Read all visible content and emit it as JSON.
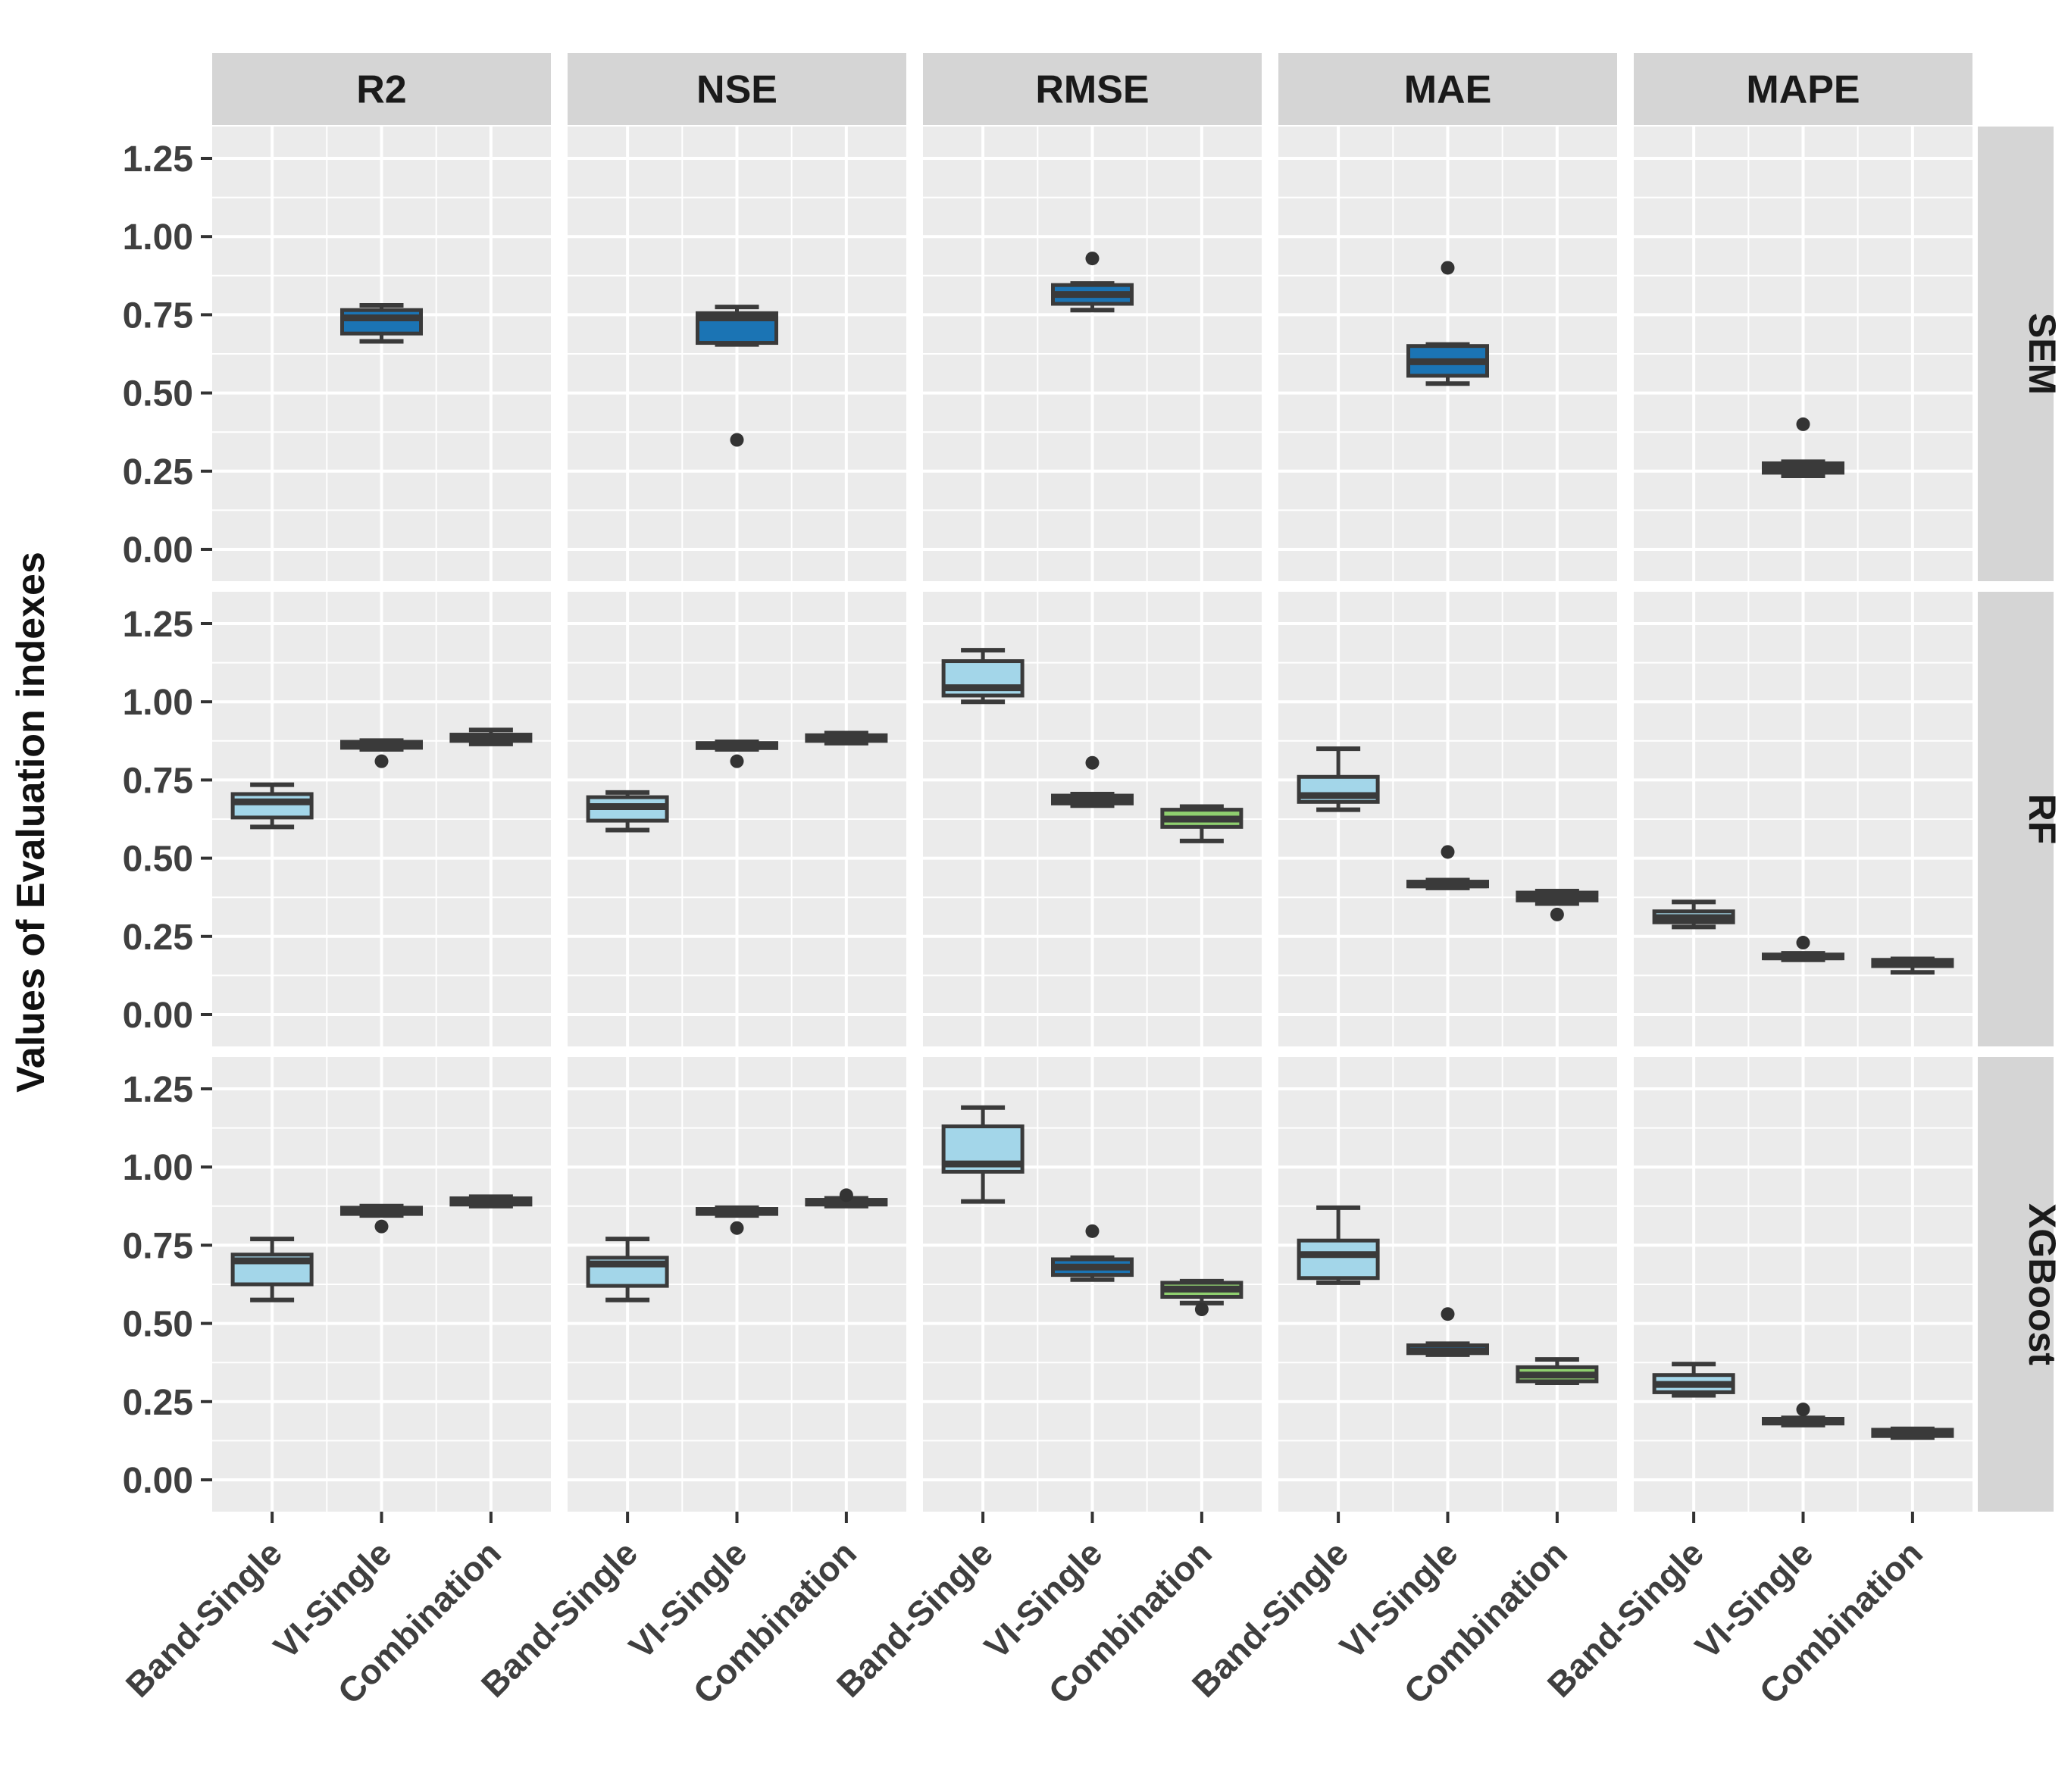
{
  "figure": {
    "background": "#ffffff",
    "panel_background": "#ebebeb",
    "strip_background": "#d5d5d5",
    "grid_color": "#ffffff",
    "box_stroke_color": "#3a3a3a",
    "outlier_color": "#333333",
    "tick_color": "#333333"
  },
  "chart_data": {
    "type": "boxplot",
    "title": "",
    "ylabel": "Values of Evaluation indexes",
    "xlabel": "",
    "col_facets": [
      "R2",
      "NSE",
      "RMSE",
      "MAE",
      "MAPE"
    ],
    "row_facets": [
      "SEM",
      "RF",
      "XGBoost"
    ],
    "categories": [
      "Band-Single",
      "VI-Single",
      "Combination"
    ],
    "group_colors": {
      "Band-Single": "#a3d6e9",
      "VI-Single": "#1b74b4",
      "Combination": "#8fcf6f"
    },
    "ylim": [
      0,
      1.25
    ],
    "ytick_values": [
      0.0,
      0.25,
      0.5,
      0.75,
      1.0,
      1.25
    ],
    "ytick_labels": [
      "0.00",
      "0.25",
      "0.50",
      "0.75",
      "1.00",
      "1.25"
    ],
    "grid": true,
    "legend": "none",
    "boxes": [
      {
        "row": "SEM",
        "col": "R2",
        "group": "VI-Single",
        "low": 0.665,
        "q1": 0.69,
        "median": 0.74,
        "q3": 0.765,
        "high": 0.78,
        "outliers": []
      },
      {
        "row": "SEM",
        "col": "NSE",
        "group": "VI-Single",
        "low": 0.655,
        "q1": 0.66,
        "median": 0.74,
        "q3": 0.755,
        "high": 0.775,
        "outliers": [
          0.35
        ]
      },
      {
        "row": "SEM",
        "col": "RMSE",
        "group": "VI-Single",
        "low": 0.765,
        "q1": 0.785,
        "median": 0.815,
        "q3": 0.845,
        "high": 0.85,
        "outliers": [
          0.93
        ]
      },
      {
        "row": "SEM",
        "col": "MAE",
        "group": "VI-Single",
        "low": 0.53,
        "q1": 0.555,
        "median": 0.6,
        "q3": 0.65,
        "high": 0.655,
        "outliers": [
          0.9
        ]
      },
      {
        "row": "SEM",
        "col": "MAPE",
        "group": "VI-Single",
        "low": 0.235,
        "q1": 0.245,
        "median": 0.26,
        "q3": 0.275,
        "high": 0.28,
        "outliers": [
          0.4
        ]
      },
      {
        "row": "RF",
        "col": "R2",
        "group": "Band-Single",
        "low": 0.6,
        "q1": 0.63,
        "median": 0.68,
        "q3": 0.705,
        "high": 0.735,
        "outliers": []
      },
      {
        "row": "RF",
        "col": "R2",
        "group": "VI-Single",
        "low": 0.848,
        "q1": 0.853,
        "median": 0.862,
        "q3": 0.872,
        "high": 0.876,
        "outliers": [
          0.81
        ]
      },
      {
        "row": "RF",
        "col": "R2",
        "group": "Combination",
        "low": 0.865,
        "q1": 0.875,
        "median": 0.885,
        "q3": 0.895,
        "high": 0.91,
        "outliers": []
      },
      {
        "row": "RF",
        "col": "NSE",
        "group": "Band-Single",
        "low": 0.59,
        "q1": 0.62,
        "median": 0.665,
        "q3": 0.695,
        "high": 0.71,
        "outliers": []
      },
      {
        "row": "RF",
        "col": "NSE",
        "group": "VI-Single",
        "low": 0.848,
        "q1": 0.852,
        "median": 0.86,
        "q3": 0.868,
        "high": 0.872,
        "outliers": [
          0.81
        ]
      },
      {
        "row": "RF",
        "col": "NSE",
        "group": "Combination",
        "low": 0.868,
        "q1": 0.875,
        "median": 0.885,
        "q3": 0.893,
        "high": 0.9,
        "outliers": []
      },
      {
        "row": "RF",
        "col": "RMSE",
        "group": "Band-Single",
        "low": 1.0,
        "q1": 1.02,
        "median": 1.045,
        "q3": 1.13,
        "high": 1.165,
        "outliers": []
      },
      {
        "row": "RF",
        "col": "RMSE",
        "group": "VI-Single",
        "low": 0.668,
        "q1": 0.675,
        "median": 0.685,
        "q3": 0.7,
        "high": 0.705,
        "outliers": [
          0.805
        ]
      },
      {
        "row": "RF",
        "col": "RMSE",
        "group": "Combination",
        "low": 0.555,
        "q1": 0.6,
        "median": 0.625,
        "q3": 0.655,
        "high": 0.665,
        "outliers": []
      },
      {
        "row": "RF",
        "col": "MAE",
        "group": "Band-Single",
        "low": 0.655,
        "q1": 0.68,
        "median": 0.7,
        "q3": 0.76,
        "high": 0.85,
        "outliers": []
      },
      {
        "row": "RF",
        "col": "MAE",
        "group": "VI-Single",
        "low": 0.405,
        "q1": 0.41,
        "median": 0.415,
        "q3": 0.425,
        "high": 0.43,
        "outliers": [
          0.52
        ]
      },
      {
        "row": "RF",
        "col": "MAE",
        "group": "Combination",
        "low": 0.355,
        "q1": 0.365,
        "median": 0.375,
        "q3": 0.39,
        "high": 0.395,
        "outliers": [
          0.32
        ]
      },
      {
        "row": "RF",
        "col": "MAPE",
        "group": "Band-Single",
        "low": 0.28,
        "q1": 0.295,
        "median": 0.31,
        "q3": 0.33,
        "high": 0.36,
        "outliers": []
      },
      {
        "row": "RF",
        "col": "MAPE",
        "group": "VI-Single",
        "low": 0.175,
        "q1": 0.18,
        "median": 0.185,
        "q3": 0.192,
        "high": 0.196,
        "outliers": [
          0.23
        ]
      },
      {
        "row": "RF",
        "col": "MAPE",
        "group": "Combination",
        "low": 0.135,
        "q1": 0.155,
        "median": 0.165,
        "q3": 0.175,
        "high": 0.178,
        "outliers": []
      },
      {
        "row": "XGBoost",
        "col": "R2",
        "group": "Band-Single",
        "low": 0.575,
        "q1": 0.625,
        "median": 0.7,
        "q3": 0.72,
        "high": 0.77,
        "outliers": []
      },
      {
        "row": "XGBoost",
        "col": "R2",
        "group": "VI-Single",
        "low": 0.845,
        "q1": 0.85,
        "median": 0.86,
        "q3": 0.87,
        "high": 0.875,
        "outliers": [
          0.81
        ]
      },
      {
        "row": "XGBoost",
        "col": "R2",
        "group": "Combination",
        "low": 0.875,
        "q1": 0.88,
        "median": 0.89,
        "q3": 0.9,
        "high": 0.905,
        "outliers": []
      },
      {
        "row": "XGBoost",
        "col": "NSE",
        "group": "Band-Single",
        "low": 0.575,
        "q1": 0.62,
        "median": 0.69,
        "q3": 0.71,
        "high": 0.77,
        "outliers": []
      },
      {
        "row": "XGBoost",
        "col": "NSE",
        "group": "VI-Single",
        "low": 0.845,
        "q1": 0.85,
        "median": 0.858,
        "q3": 0.866,
        "high": 0.87,
        "outliers": [
          0.805
        ]
      },
      {
        "row": "XGBoost",
        "col": "NSE",
        "group": "Combination",
        "low": 0.875,
        "q1": 0.88,
        "median": 0.888,
        "q3": 0.895,
        "high": 0.9,
        "outliers": [
          0.91
        ]
      },
      {
        "row": "XGBoost",
        "col": "RMSE",
        "group": "Band-Single",
        "low": 0.89,
        "q1": 0.985,
        "median": 1.01,
        "q3": 1.13,
        "high": 1.19,
        "outliers": []
      },
      {
        "row": "XGBoost",
        "col": "RMSE",
        "group": "VI-Single",
        "low": 0.64,
        "q1": 0.655,
        "median": 0.68,
        "q3": 0.705,
        "high": 0.71,
        "outliers": [
          0.795
        ]
      },
      {
        "row": "XGBoost",
        "col": "RMSE",
        "group": "Combination",
        "low": 0.565,
        "q1": 0.585,
        "median": 0.61,
        "q3": 0.63,
        "high": 0.635,
        "outliers": [
          0.545
        ]
      },
      {
        "row": "XGBoost",
        "col": "MAE",
        "group": "Band-Single",
        "low": 0.63,
        "q1": 0.645,
        "median": 0.72,
        "q3": 0.765,
        "high": 0.87,
        "outliers": []
      },
      {
        "row": "XGBoost",
        "col": "MAE",
        "group": "VI-Single",
        "low": 0.4,
        "q1": 0.405,
        "median": 0.412,
        "q3": 0.43,
        "high": 0.435,
        "outliers": [
          0.53
        ]
      },
      {
        "row": "XGBoost",
        "col": "MAE",
        "group": "Combination",
        "low": 0.31,
        "q1": 0.315,
        "median": 0.335,
        "q3": 0.36,
        "high": 0.385,
        "outliers": []
      },
      {
        "row": "XGBoost",
        "col": "MAPE",
        "group": "Band-Single",
        "low": 0.27,
        "q1": 0.28,
        "median": 0.305,
        "q3": 0.335,
        "high": 0.37,
        "outliers": []
      },
      {
        "row": "XGBoost",
        "col": "MAPE",
        "group": "VI-Single",
        "low": 0.175,
        "q1": 0.18,
        "median": 0.186,
        "q3": 0.195,
        "high": 0.198,
        "outliers": [
          0.225
        ]
      },
      {
        "row": "XGBoost",
        "col": "MAPE",
        "group": "Combination",
        "low": 0.135,
        "q1": 0.14,
        "median": 0.15,
        "q3": 0.16,
        "high": 0.163,
        "outliers": []
      }
    ]
  }
}
